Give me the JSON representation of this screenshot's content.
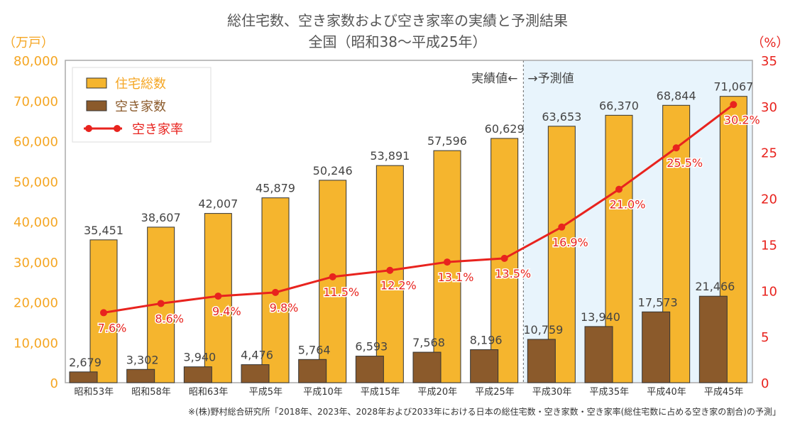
{
  "chart_data": {
    "type": "bar+line",
    "title": "総住宅数、空き家数および空き家率の実績と予測結果",
    "subtitle": "全国（昭和38〜平成25年）",
    "left_unit": "（万戸）",
    "right_unit": "（%）",
    "categories": [
      "昭和53年",
      "昭和58年",
      "昭和63年",
      "平成5年",
      "平成10年",
      "平成15年",
      "平成20年",
      "平成25年",
      "平成30年",
      "平成35年",
      "平成40年",
      "平成45年"
    ],
    "series": [
      {
        "name": "住宅総数",
        "type": "bar",
        "axis": "left",
        "color": "#F5B52E",
        "values": [
          35451,
          38607,
          42007,
          45879,
          50246,
          53891,
          57596,
          60629,
          63653,
          66370,
          68844,
          71067
        ],
        "labels": [
          "35,451",
          "38,607",
          "42,007",
          "45,879",
          "50,246",
          "53,891",
          "57,596",
          "60,629",
          "63,653",
          "66,370",
          "68,844",
          "71,067"
        ]
      },
      {
        "name": "空き家数",
        "type": "bar",
        "axis": "left",
        "color": "#8B5A2B",
        "values": [
          2679,
          3302,
          3940,
          4476,
          5764,
          6593,
          7568,
          8196,
          10759,
          13940,
          17573,
          21466
        ],
        "labels": [
          "2,679",
          "3,302",
          "3,940",
          "4,476",
          "5,764",
          "6,593",
          "7,568",
          "8,196",
          "10,759",
          "13,940",
          "17,573",
          "21,466"
        ]
      },
      {
        "name": "空き家率",
        "type": "line",
        "axis": "right",
        "color": "#E8231E",
        "values": [
          7.6,
          8.6,
          9.4,
          9.8,
          11.5,
          12.2,
          13.1,
          13.5,
          16.9,
          21.0,
          25.5,
          30.2
        ],
        "labels": [
          "7.6%",
          "8.6%",
          "9.4%",
          "9.8%",
          "11.5%",
          "12.2%",
          "13.1%",
          "13.5%",
          "16.9%",
          "21.0%",
          "25.5%",
          "30.2%"
        ]
      }
    ],
    "left_ylim": [
      0,
      80000
    ],
    "left_ticks": [
      "0",
      "10,000",
      "20,000",
      "30,000",
      "40,000",
      "50,000",
      "60,000",
      "70,000",
      "80,000"
    ],
    "right_ylim": [
      0,
      35
    ],
    "right_ticks": [
      "0",
      "5",
      "10",
      "15",
      "20",
      "25",
      "30",
      "35"
    ],
    "actual_label": "実績値←",
    "forecast_label": "→予測値",
    "forecast_shade": "#E8F4FC",
    "legend_position": "top-left",
    "grid": false,
    "source": "※(株)野村総合研究所「2018年、2023年、2028年および2033年における日本の総住宅数・空き家数・空き家率(総住宅数に占める空き家の割合)の予測」"
  }
}
